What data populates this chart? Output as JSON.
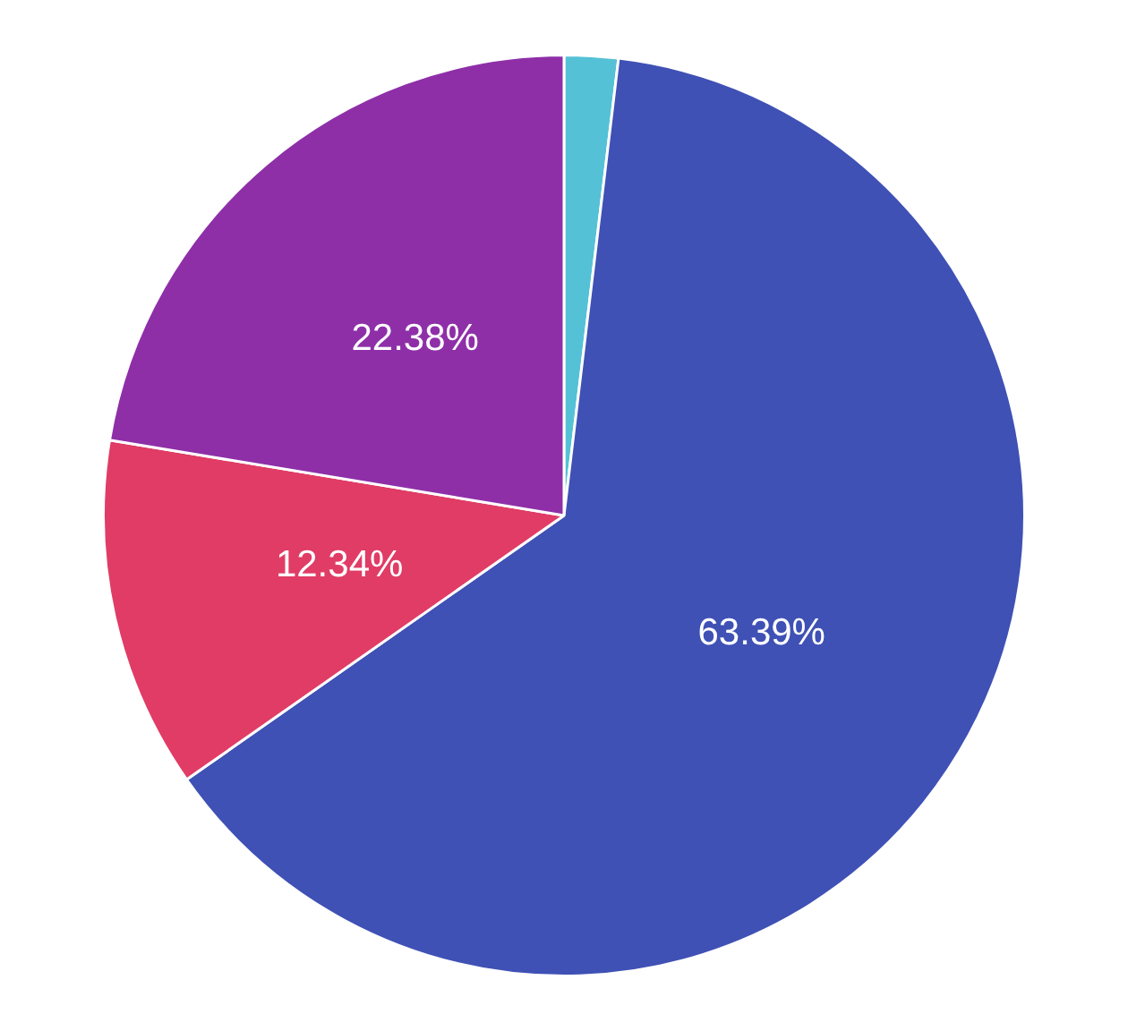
{
  "chart_data": {
    "type": "pie",
    "categories": [
      null,
      null,
      null,
      null
    ],
    "values": [
      1.89,
      63.39,
      12.34,
      22.38
    ],
    "colors": [
      "#55c1d6",
      "#3f51b5",
      "#e03c66",
      "#8e2fa8"
    ],
    "value_labels": [
      null,
      "63.39%",
      "12.34%",
      "22.38%"
    ]
  }
}
